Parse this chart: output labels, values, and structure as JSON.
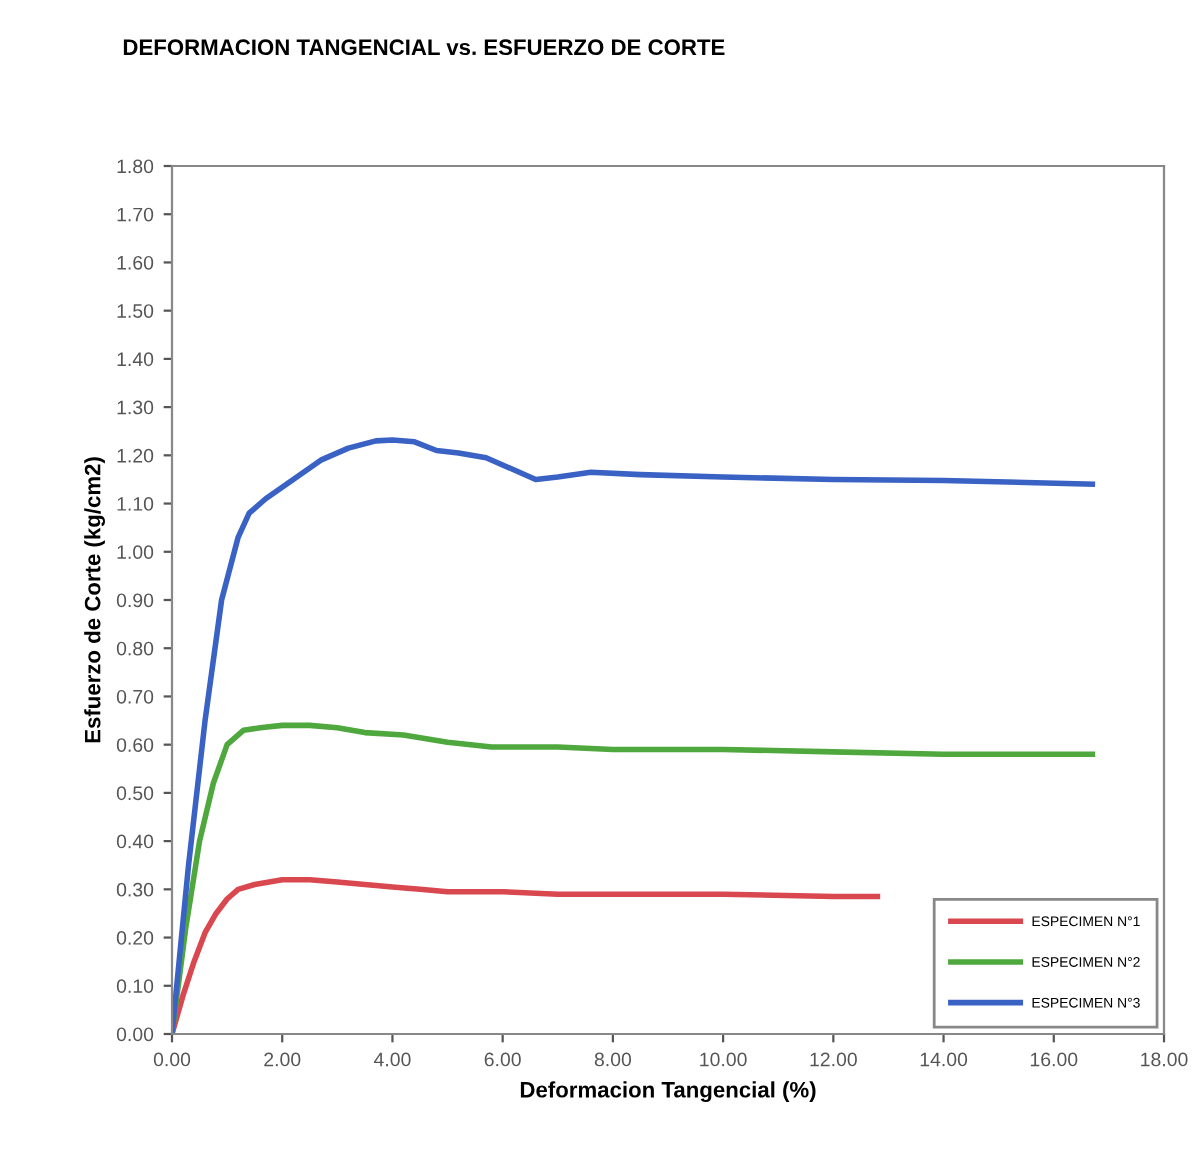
{
  "chart_data": {
    "type": "line",
    "title": "DEFORMACION TANGENCIAL vs. ESFUERZO DE CORTE",
    "xlabel": "Deformacion Tangencial (%)",
    "ylabel": "Esfuerzo de Corte (kg/cm2)",
    "series": [
      {
        "name": "ESPECIMEN N°1",
        "color": "#d9474f",
        "x": [
          0,
          0.2,
          0.4,
          0.6,
          0.8,
          1.0,
          1.2,
          1.5,
          2.0,
          2.5,
          3.0,
          3.5,
          4.0,
          4.5,
          5.0,
          6.0,
          7.0,
          8.0,
          10.0,
          12.0,
          12.8
        ],
        "values": [
          0,
          0.08,
          0.15,
          0.21,
          0.25,
          0.28,
          0.3,
          0.31,
          0.32,
          0.32,
          0.315,
          0.31,
          0.305,
          0.3,
          0.295,
          0.295,
          0.29,
          0.29,
          0.29,
          0.285,
          0.285
        ]
      },
      {
        "name": "ESPECIMEN N°2",
        "color": "#4fa83d",
        "x": [
          0,
          0.25,
          0.5,
          0.75,
          1.0,
          1.3,
          1.6,
          2.0,
          2.5,
          3.0,
          3.5,
          4.2,
          5.0,
          5.8,
          7.0,
          8.0,
          10.0,
          12.0,
          14.0,
          16.7
        ],
        "values": [
          0,
          0.22,
          0.4,
          0.52,
          0.6,
          0.63,
          0.635,
          0.64,
          0.64,
          0.635,
          0.625,
          0.62,
          0.605,
          0.595,
          0.595,
          0.59,
          0.59,
          0.585,
          0.58,
          0.58
        ]
      },
      {
        "name": "ESPECIMEN N°3",
        "color": "#3a62c4",
        "x": [
          0,
          0.3,
          0.6,
          0.9,
          1.2,
          1.4,
          1.7,
          2.2,
          2.7,
          3.2,
          3.7,
          4.0,
          4.4,
          4.8,
          5.2,
          5.7,
          6.2,
          6.6,
          7.0,
          7.6,
          8.5,
          10.0,
          12.0,
          14.0,
          16.7
        ],
        "values": [
          0,
          0.35,
          0.65,
          0.9,
          1.03,
          1.08,
          1.11,
          1.15,
          1.19,
          1.215,
          1.23,
          1.232,
          1.228,
          1.21,
          1.205,
          1.195,
          1.17,
          1.15,
          1.155,
          1.165,
          1.16,
          1.155,
          1.15,
          1.148,
          1.14
        ]
      }
    ],
    "xlim": [
      0,
      18
    ],
    "xticks": [
      {
        "value": 0,
        "label": "0.00"
      },
      {
        "value": 2,
        "label": "2.00"
      },
      {
        "value": 4,
        "label": "4.00"
      },
      {
        "value": 6,
        "label": "6.00"
      },
      {
        "value": 8,
        "label": "8.00"
      },
      {
        "value": 10,
        "label": "10.00"
      },
      {
        "value": 12,
        "label": "12.00"
      },
      {
        "value": 14,
        "label": "14.00"
      },
      {
        "value": 16,
        "label": "16.00"
      },
      {
        "value": 18,
        "label": "18.00"
      }
    ],
    "ylim": [
      0,
      1.8
    ],
    "yticks": [
      {
        "value": 0,
        "label": "0.00"
      },
      {
        "value": 0.1,
        "label": "0.10"
      },
      {
        "value": 0.2,
        "label": "0.20"
      },
      {
        "value": 0.3,
        "label": "0.30"
      },
      {
        "value": 0.4,
        "label": "0.40"
      },
      {
        "value": 0.5,
        "label": "0.50"
      },
      {
        "value": 0.6,
        "label": "0.60"
      },
      {
        "value": 0.7,
        "label": "0.70"
      },
      {
        "value": 0.8,
        "label": "0.80"
      },
      {
        "value": 0.9,
        "label": "0.90"
      },
      {
        "value": 1.0,
        "label": "1.00"
      },
      {
        "value": 1.1,
        "label": "1.10"
      },
      {
        "value": 1.2,
        "label": "1.20"
      },
      {
        "value": 1.3,
        "label": "1.30"
      },
      {
        "value": 1.4,
        "label": "1.40"
      },
      {
        "value": 1.5,
        "label": "1.50"
      },
      {
        "value": 1.6,
        "label": "1.60"
      },
      {
        "value": 1.7,
        "label": "1.70"
      },
      {
        "value": 1.8,
        "label": "1.80"
      }
    ],
    "grid": false,
    "legend": "bottom right",
    "marker": "none",
    "line_style": "solid"
  }
}
